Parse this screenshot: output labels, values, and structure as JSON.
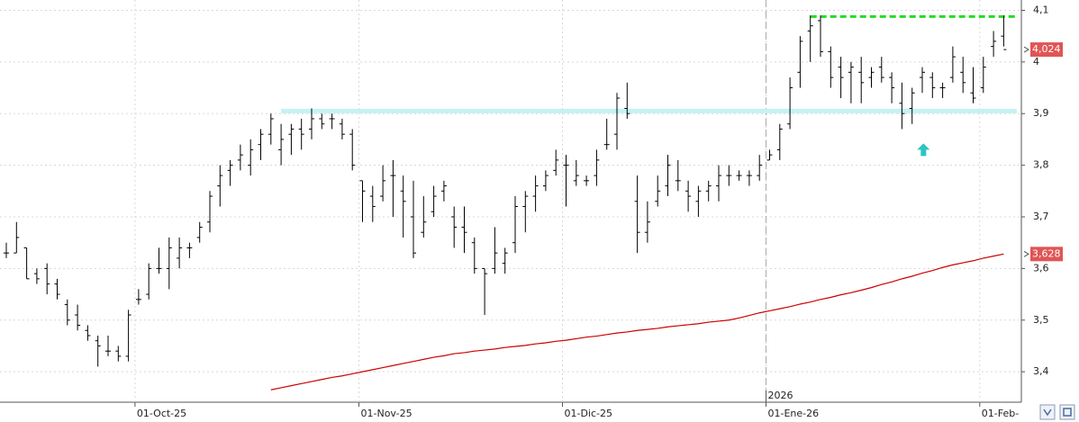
{
  "chart_data": {
    "type": "ohlc",
    "categories": [
      null,
      null,
      null,
      null,
      null,
      null,
      null,
      null,
      null,
      null,
      null,
      null,
      null,
      "01-Oct-25",
      null,
      null,
      null,
      null,
      null,
      null,
      null,
      null,
      null,
      null,
      null,
      null,
      null,
      null,
      null,
      null,
      null,
      null,
      null,
      null,
      null,
      "01-Nov-25",
      null,
      null,
      null,
      null,
      null,
      null,
      null,
      null,
      null,
      null,
      null,
      null,
      null,
      null,
      null,
      null,
      null,
      null,
      null,
      "01-Dic-25",
      null,
      null,
      null,
      null,
      null,
      null,
      null,
      null,
      null,
      null,
      null,
      null,
      null,
      null,
      null,
      null,
      null,
      null,
      null,
      "01-Ene-26",
      null,
      null,
      null,
      null,
      null,
      null,
      null,
      null,
      null,
      null,
      null,
      null,
      null,
      null,
      null,
      null,
      null,
      null,
      null,
      null,
      "01-Feb-",
      null,
      null
    ],
    "ohlc": {
      "color": "#000000",
      "open": [
        3.63,
        3.63,
        3.64,
        3.59,
        3.6,
        3.57,
        3.53,
        3.51,
        3.48,
        3.46,
        3.44,
        3.44,
        3.43,
        3.54,
        3.55,
        3.6,
        3.6,
        3.62,
        3.64,
        3.66,
        3.69,
        3.76,
        3.79,
        3.81,
        3.8,
        3.84,
        3.86,
        3.83,
        3.86,
        3.87,
        3.87,
        3.89,
        3.89,
        3.88,
        3.86,
        3.77,
        3.74,
        3.74,
        3.78,
        3.75,
        3.7,
        3.67,
        3.71,
        3.75,
        3.7,
        3.68,
        3.65,
        3.6,
        3.6,
        3.61,
        3.65,
        3.72,
        3.74,
        3.76,
        3.79,
        3.8,
        3.77,
        3.77,
        3.78,
        3.84,
        3.86,
        3.91,
        3.73,
        3.67,
        3.73,
        3.76,
        3.77,
        3.75,
        3.73,
        3.75,
        3.76,
        3.78,
        3.78,
        3.78,
        3.78,
        3.81,
        3.83,
        3.88,
        3.98,
        4.06,
        4.08,
        4.02,
        3.99,
        3.98,
        3.98,
        3.97,
        3.99,
        3.97,
        3.92,
        3.91,
        3.97,
        3.97,
        3.95,
        3.97,
        3.98,
        3.94,
        3.95,
        4.03,
        4.05
      ],
      "high": [
        3.65,
        3.69,
        3.64,
        3.6,
        3.61,
        3.58,
        3.54,
        3.53,
        3.49,
        3.47,
        3.47,
        3.45,
        3.52,
        3.56,
        3.61,
        3.64,
        3.66,
        3.66,
        3.65,
        3.69,
        3.75,
        3.8,
        3.81,
        3.84,
        3.85,
        3.87,
        3.9,
        3.88,
        3.88,
        3.89,
        3.91,
        3.9,
        3.9,
        3.89,
        3.87,
        3.77,
        3.76,
        3.8,
        3.81,
        3.78,
        3.77,
        3.74,
        3.76,
        3.77,
        3.72,
        3.72,
        3.66,
        3.6,
        3.68,
        3.64,
        3.74,
        3.75,
        3.78,
        3.79,
        3.83,
        3.82,
        3.81,
        3.78,
        3.83,
        3.89,
        3.94,
        3.96,
        3.78,
        3.73,
        3.78,
        3.82,
        3.81,
        3.77,
        3.76,
        3.77,
        3.8,
        3.8,
        3.79,
        3.79,
        3.82,
        3.83,
        3.88,
        3.97,
        4.05,
        4.09,
        4.09,
        4.03,
        4.01,
        4.0,
        4.01,
        3.99,
        4.01,
        3.98,
        3.96,
        3.95,
        3.99,
        3.98,
        3.96,
        4.03,
        4.01,
        3.99,
        4.01,
        4.06,
        4.09
      ],
      "low": [
        3.62,
        3.63,
        3.58,
        3.57,
        3.55,
        3.54,
        3.49,
        3.48,
        3.46,
        3.41,
        3.43,
        3.42,
        3.42,
        3.53,
        3.54,
        3.59,
        3.56,
        3.6,
        3.62,
        3.65,
        3.67,
        3.72,
        3.76,
        3.79,
        3.78,
        3.81,
        3.84,
        3.8,
        3.82,
        3.83,
        3.85,
        3.87,
        3.87,
        3.85,
        3.79,
        3.69,
        3.69,
        3.73,
        3.7,
        3.66,
        3.62,
        3.66,
        3.7,
        3.73,
        3.64,
        3.63,
        3.59,
        3.51,
        3.59,
        3.59,
        3.63,
        3.67,
        3.71,
        3.75,
        3.78,
        3.72,
        3.76,
        3.76,
        3.76,
        3.83,
        3.83,
        3.89,
        3.63,
        3.65,
        3.72,
        3.74,
        3.75,
        3.71,
        3.7,
        3.73,
        3.73,
        3.76,
        3.77,
        3.76,
        3.77,
        3.81,
        3.81,
        3.87,
        3.95,
        4.0,
        4.01,
        3.95,
        3.93,
        3.92,
        3.92,
        3.95,
        3.96,
        3.92,
        3.87,
        3.88,
        3.94,
        3.93,
        3.93,
        3.96,
        3.94,
        3.92,
        3.94,
        4.01,
        4.03
      ],
      "close": [
        3.63,
        3.66,
        3.58,
        3.58,
        3.57,
        3.55,
        3.5,
        3.49,
        3.47,
        3.45,
        3.44,
        3.43,
        3.51,
        3.54,
        3.6,
        3.6,
        3.64,
        3.64,
        3.64,
        3.68,
        3.74,
        3.78,
        3.8,
        3.82,
        3.83,
        3.86,
        3.89,
        3.85,
        3.87,
        3.86,
        3.89,
        3.88,
        3.89,
        3.86,
        3.8,
        3.75,
        3.72,
        3.77,
        3.78,
        3.73,
        3.63,
        3.69,
        3.74,
        3.76,
        3.68,
        3.67,
        3.6,
        3.59,
        3.63,
        3.63,
        3.72,
        3.74,
        3.76,
        3.78,
        3.81,
        3.8,
        3.78,
        3.77,
        3.81,
        3.84,
        3.93,
        3.9,
        3.67,
        3.69,
        3.75,
        3.8,
        3.77,
        3.74,
        3.75,
        3.76,
        3.78,
        3.78,
        3.78,
        3.78,
        3.8,
        3.82,
        3.87,
        3.95,
        4.04,
        4.07,
        4.02,
        3.97,
        3.97,
        3.99,
        3.96,
        3.98,
        3.97,
        3.95,
        3.9,
        3.94,
        3.98,
        3.95,
        3.95,
        4.01,
        3.96,
        3.93,
        3.99,
        4.04,
        4.024
      ]
    },
    "ma": {
      "color": "#cc0000",
      "values": [
        null,
        null,
        null,
        null,
        null,
        null,
        null,
        null,
        null,
        null,
        null,
        null,
        null,
        null,
        null,
        null,
        null,
        null,
        null,
        null,
        null,
        null,
        null,
        null,
        null,
        null,
        3.365,
        3.369,
        3.373,
        3.377,
        3.381,
        3.385,
        3.389,
        3.392,
        3.396,
        3.4,
        3.404,
        3.408,
        3.412,
        3.416,
        3.42,
        3.424,
        3.428,
        3.431,
        3.435,
        3.437,
        3.44,
        3.442,
        3.444,
        3.447,
        3.449,
        3.451,
        3.454,
        3.456,
        3.459,
        3.461,
        3.464,
        3.467,
        3.469,
        3.472,
        3.475,
        3.477,
        3.48,
        3.482,
        3.484,
        3.487,
        3.489,
        3.491,
        3.493,
        3.496,
        3.498,
        3.5,
        3.504,
        3.509,
        3.514,
        3.518,
        3.522,
        3.526,
        3.531,
        3.535,
        3.54,
        3.544,
        3.549,
        3.553,
        3.558,
        3.563,
        3.569,
        3.574,
        3.58,
        3.585,
        3.591,
        3.596,
        3.602,
        3.607,
        3.611,
        3.615,
        3.62,
        3.624,
        3.628
      ]
    },
    "ylim": [
      3.341,
      4.12
    ],
    "yticks": [
      {
        "value": 3.4,
        "label": "3,4"
      },
      {
        "value": 3.5,
        "label": "3,5"
      },
      {
        "value": 3.6,
        "label": "3,6"
      },
      {
        "value": 3.7,
        "label": "3,7"
      },
      {
        "value": 3.8,
        "label": "3,8"
      },
      {
        "value": 3.9,
        "label": "3,9"
      },
      {
        "value": 4,
        "label": "4"
      },
      {
        "value": 4.1,
        "label": "4,1"
      }
    ],
    "grid": true,
    "price_tags": [
      {
        "value": 4.024,
        "label": "4,024",
        "color": "#e05555"
      },
      {
        "value": 3.628,
        "label": "3,628",
        "color": "#e05555"
      }
    ],
    "levels": [
      {
        "value": 4.088,
        "color": "#22dd22",
        "dash": true,
        "from": 79,
        "to": 98
      },
      {
        "value": 3.905,
        "color": "#c4f2f2",
        "dash": false,
        "from": 27,
        "to": 98
      }
    ],
    "arrow": {
      "index": 91,
      "value": 3.83,
      "color": "#2cc4c4"
    },
    "year_marker": {
      "label": "2026",
      "index": 75
    }
  }
}
